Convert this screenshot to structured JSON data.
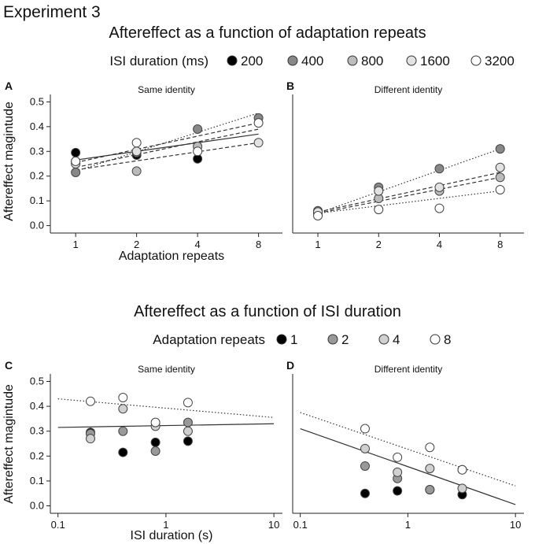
{
  "figure_title": "Experiment 3",
  "section1": {
    "title": "Aftereffect as a function of adaptation repeats",
    "legend_title": "ISI duration (ms)",
    "legend": [
      {
        "label": "200",
        "color": "#000000"
      },
      {
        "label": "400",
        "color": "#888888"
      },
      {
        "label": "800",
        "color": "#bbbbbb"
      },
      {
        "label": "1600",
        "color": "#e2e2e2"
      },
      {
        "label": "3200",
        "color": "#ffffff"
      }
    ],
    "xlabel": "Adaptation repeats",
    "ylabel": "Aftereffect magintude"
  },
  "section2": {
    "title": "Aftereffect as a function of ISI duration",
    "legend_title": "Adaptation repeats",
    "legend": [
      {
        "label": "1",
        "color": "#000000"
      },
      {
        "label": "2",
        "color": "#999999"
      },
      {
        "label": "4",
        "color": "#d0d0d0"
      },
      {
        "label": "8",
        "color": "#ffffff"
      }
    ],
    "xlabel": "ISI duration (s)",
    "ylabel": "Aftereffect magintude"
  },
  "chart_data": [
    {
      "id": "A",
      "type": "scatter",
      "title": "Same identity",
      "xscale": "log2",
      "xlim": [
        0.75,
        10.5
      ],
      "xticks": [
        1,
        2,
        4,
        8
      ],
      "ylim": [
        -0.03,
        0.53
      ],
      "yticks": [
        0.0,
        0.1,
        0.2,
        0.3,
        0.4,
        0.5
      ],
      "series": [
        {
          "name": "200",
          "color": "#000000",
          "x": [
            1,
            2,
            4
          ],
          "y": [
            0.295,
            0.285,
            0.27
          ]
        },
        {
          "name": "400",
          "color": "#888888",
          "x": [
            1,
            2,
            4,
            8
          ],
          "y": [
            0.215,
            0.295,
            0.39,
            0.435
          ]
        },
        {
          "name": "800",
          "color": "#bbbbbb",
          "x": [
            1,
            2,
            4
          ],
          "y": [
            0.26,
            0.22,
            0.32
          ]
        },
        {
          "name": "1600",
          "color": "#e2e2e2",
          "x": [
            1,
            2,
            8
          ],
          "y": [
            0.25,
            0.3,
            0.335
          ]
        },
        {
          "name": "3200",
          "color": "#ffffff",
          "x": [
            1,
            2,
            4,
            8
          ],
          "y": [
            0.26,
            0.335,
            0.3,
            0.415
          ]
        }
      ],
      "fits": [
        {
          "style": "solid",
          "x": [
            1,
            8
          ],
          "y": [
            0.265,
            0.37
          ]
        },
        {
          "style": "dotted",
          "x": [
            1,
            8
          ],
          "y": [
            0.22,
            0.455
          ]
        },
        {
          "style": "dashed",
          "x": [
            1,
            8
          ],
          "y": [
            0.225,
            0.335
          ]
        },
        {
          "style": "dashed",
          "x": [
            1,
            8
          ],
          "y": [
            0.235,
            0.39
          ]
        },
        {
          "style": "dashed",
          "x": [
            1,
            8
          ],
          "y": [
            0.255,
            0.415
          ]
        }
      ]
    },
    {
      "id": "B",
      "type": "scatter",
      "title": "Different identity",
      "xscale": "log2",
      "xlim": [
        0.75,
        10.5
      ],
      "xticks": [
        1,
        2,
        4,
        8
      ],
      "ylim": [
        -0.03,
        0.53
      ],
      "yticks": [
        0.0,
        0.1,
        0.2,
        0.3,
        0.4,
        0.5
      ],
      "series": [
        {
          "name": "200",
          "color": "#000000",
          "x": [],
          "y": []
        },
        {
          "name": "400",
          "color": "#888888",
          "x": [
            1,
            2,
            4,
            8
          ],
          "y": [
            0.06,
            0.155,
            0.23,
            0.31
          ]
        },
        {
          "name": "800",
          "color": "#bbbbbb",
          "x": [
            1,
            2,
            4,
            8
          ],
          "y": [
            0.05,
            0.11,
            0.14,
            0.195
          ]
        },
        {
          "name": "1600",
          "color": "#e2e2e2",
          "x": [
            1,
            2,
            4,
            8
          ],
          "y": [
            0.055,
            0.14,
            0.155,
            0.235
          ]
        },
        {
          "name": "3200",
          "color": "#ffffff",
          "x": [
            1,
            2,
            4,
            8
          ],
          "y": [
            0.04,
            0.065,
            0.07,
            0.145
          ]
        }
      ],
      "fits": [
        {
          "style": "dotted",
          "x": [
            1,
            8
          ],
          "y": [
            0.05,
            0.31
          ]
        },
        {
          "style": "dashed",
          "x": [
            1,
            8
          ],
          "y": [
            0.05,
            0.195
          ]
        },
        {
          "style": "dashed",
          "x": [
            1,
            8
          ],
          "y": [
            0.055,
            0.215
          ]
        },
        {
          "style": "dotted",
          "x": [
            1,
            8
          ],
          "y": [
            0.05,
            0.14
          ]
        }
      ]
    },
    {
      "id": "C",
      "type": "scatter",
      "title": "Same identity",
      "xscale": "log10",
      "xlim": [
        0.085,
        12
      ],
      "xticks": [
        0.1,
        1,
        10
      ],
      "ylim": [
        -0.03,
        0.53
      ],
      "yticks": [
        0.0,
        0.1,
        0.2,
        0.3,
        0.4,
        0.5
      ],
      "series": [
        {
          "name": "1",
          "color": "#000000",
          "x": [
            0.2,
            0.4,
            0.8,
            1.6
          ],
          "y": [
            0.295,
            0.215,
            0.255,
            0.26
          ]
        },
        {
          "name": "2",
          "color": "#999999",
          "x": [
            0.2,
            0.4,
            0.8,
            1.6
          ],
          "y": [
            0.29,
            0.3,
            0.22,
            0.335
          ]
        },
        {
          "name": "4",
          "color": "#d0d0d0",
          "x": [
            0.2,
            0.4,
            0.8,
            1.6
          ],
          "y": [
            0.27,
            0.39,
            0.32,
            0.3
          ]
        },
        {
          "name": "8",
          "color": "#ffffff",
          "x": [
            0.2,
            0.4,
            0.8,
            1.6
          ],
          "y": [
            0.42,
            0.435,
            0.335,
            0.415
          ]
        }
      ],
      "fits": [
        {
          "style": "solid",
          "x": [
            0.1,
            10
          ],
          "y": [
            0.315,
            0.33
          ]
        },
        {
          "style": "dotted",
          "x": [
            0.1,
            10
          ],
          "y": [
            0.43,
            0.355
          ]
        }
      ]
    },
    {
      "id": "D",
      "type": "scatter",
      "title": "Different identity",
      "xscale": "log10",
      "xlim": [
        0.085,
        12
      ],
      "xticks": [
        0.1,
        1,
        10
      ],
      "ylim": [
        -0.03,
        0.53
      ],
      "yticks": [
        0.0,
        0.1,
        0.2,
        0.3,
        0.4,
        0.5
      ],
      "series": [
        {
          "name": "1",
          "color": "#000000",
          "x": [
            0.4,
            0.8,
            1.6,
            3.2
          ],
          "y": [
            0.05,
            0.06,
            0.065,
            0.045
          ]
        },
        {
          "name": "2",
          "color": "#999999",
          "x": [
            0.4,
            0.8,
            1.6,
            3.2
          ],
          "y": [
            0.16,
            0.11,
            0.065,
            0.145
          ]
        },
        {
          "name": "4",
          "color": "#d0d0d0",
          "x": [
            0.4,
            0.8,
            1.6,
            3.2
          ],
          "y": [
            0.23,
            0.135,
            0.15,
            0.07
          ]
        },
        {
          "name": "8",
          "color": "#ffffff",
          "x": [
            0.4,
            0.8,
            1.6,
            3.2
          ],
          "y": [
            0.31,
            0.195,
            0.235,
            0.145
          ]
        }
      ],
      "fits": [
        {
          "style": "solid",
          "x": [
            0.1,
            10
          ],
          "y": [
            0.31,
            0.005
          ]
        },
        {
          "style": "dotted",
          "x": [
            0.1,
            10
          ],
          "y": [
            0.375,
            0.08
          ]
        }
      ]
    }
  ]
}
